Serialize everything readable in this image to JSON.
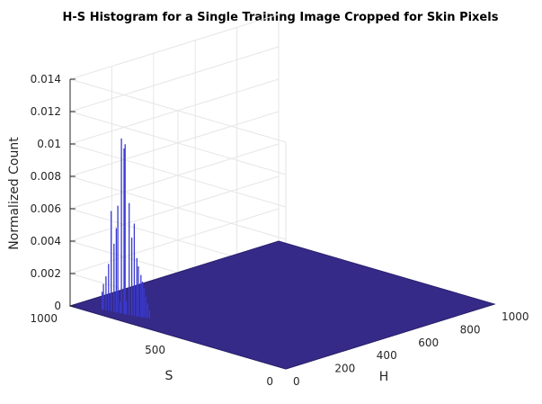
{
  "chart_data": {
    "type": "histogram-3d",
    "title": "H-S Histogram for a Single Training Image Cropped for Skin Pixels",
    "xlabel": "H",
    "ylabel": "S",
    "zlabel": "Normalized Count",
    "xlim": [
      0,
      1000
    ],
    "ylim": [
      0,
      1000
    ],
    "zlim": [
      0,
      0.014
    ],
    "x_ticks": [
      "0",
      "200",
      "400",
      "600",
      "800",
      "1000"
    ],
    "y_ticks": [
      "0",
      "500",
      "1000"
    ],
    "z_ticks": [
      "0",
      "0.002",
      "0.004",
      "0.006",
      "0.008",
      "0.01",
      "0.012",
      "0.014"
    ],
    "grid": true,
    "colors": {
      "surface": "#352a87",
      "bar": "#3a3ad0",
      "grid": "#e6e6e6",
      "axis": "#262626"
    },
    "points": [
      {
        "h": 60,
        "s": 820,
        "count": 0.0108
      },
      {
        "h": 62,
        "s": 805,
        "count": 0.0105
      },
      {
        "h": 64,
        "s": 812,
        "count": 0.0102
      },
      {
        "h": 58,
        "s": 835,
        "count": 0.0066
      },
      {
        "h": 66,
        "s": 790,
        "count": 0.0069
      },
      {
        "h": 52,
        "s": 860,
        "count": 0.0062
      },
      {
        "h": 56,
        "s": 840,
        "count": 0.0052
      },
      {
        "h": 70,
        "s": 770,
        "count": 0.0057
      },
      {
        "h": 68,
        "s": 780,
        "count": 0.0048
      },
      {
        "h": 55,
        "s": 850,
        "count": 0.0042
      },
      {
        "h": 72,
        "s": 760,
        "count": 0.0036
      },
      {
        "h": 74,
        "s": 755,
        "count": 0.0031
      },
      {
        "h": 50,
        "s": 870,
        "count": 0.0029
      },
      {
        "h": 76,
        "s": 745,
        "count": 0.0026
      },
      {
        "h": 78,
        "s": 740,
        "count": 0.0022
      },
      {
        "h": 48,
        "s": 880,
        "count": 0.0021
      },
      {
        "h": 80,
        "s": 735,
        "count": 0.0018
      },
      {
        "h": 46,
        "s": 890,
        "count": 0.0016
      },
      {
        "h": 82,
        "s": 728,
        "count": 0.0013
      },
      {
        "h": 45,
        "s": 895,
        "count": 0.0011
      },
      {
        "h": 84,
        "s": 722,
        "count": 0.0009
      },
      {
        "h": 63,
        "s": 800,
        "count": 0.0008
      },
      {
        "h": 59,
        "s": 825,
        "count": 0.0007
      },
      {
        "h": 86,
        "s": 715,
        "count": 0.0005
      }
    ]
  }
}
